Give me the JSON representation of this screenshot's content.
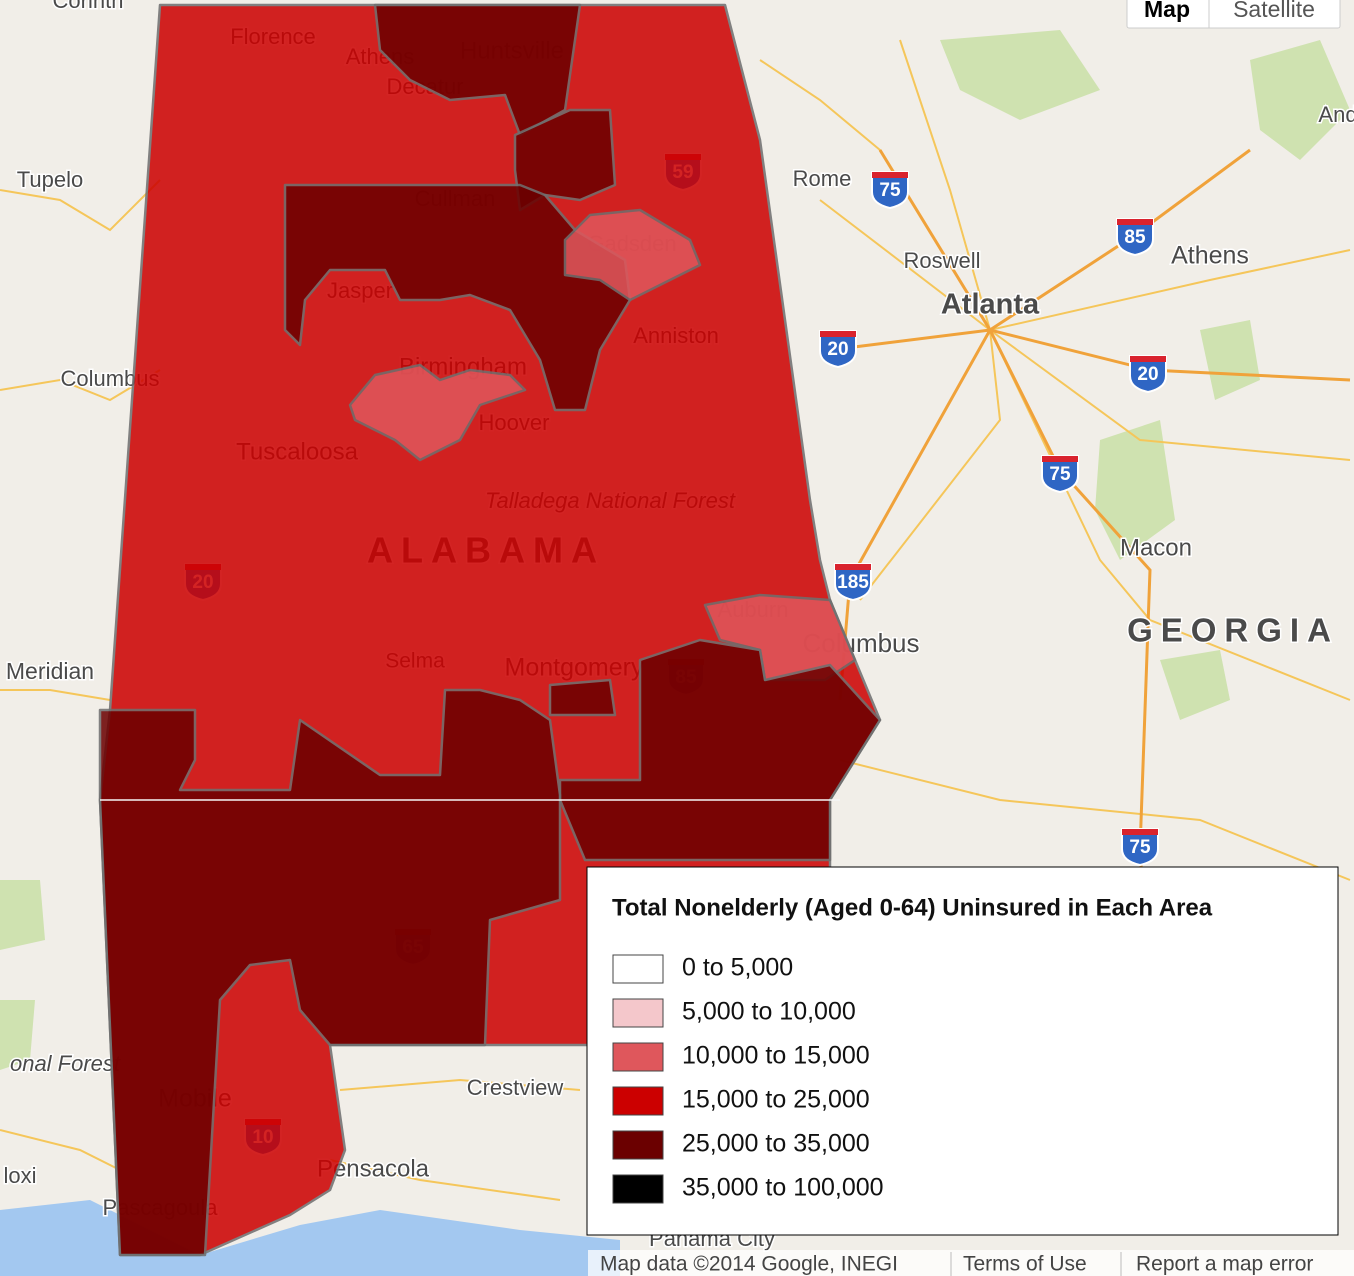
{
  "map_type_control": {
    "buttons": [
      "Map",
      "Satellite"
    ],
    "selected": 0
  },
  "places": [
    "Corinth",
    "Florence",
    "Athens",
    "Huntsville",
    "Decatur",
    "Tupelo",
    "Cullman",
    "Rome",
    "Roswell",
    "Athens",
    "Atlanta",
    "Gadsden",
    "Jasper",
    "Anniston",
    "Columbus",
    "Birmingham",
    "Hoover",
    "Tuscaloosa",
    "Talladega National Forest",
    "ALABAMA",
    "Macon",
    "Auburn",
    "Columbus",
    "GEORGIA",
    "Meridian",
    "Selma",
    "Montgomery",
    "Crestview",
    "Mobile",
    "Pensacola",
    "Pascagoula",
    "Panama City",
    "onal Forest",
    "loxi",
    "And"
  ],
  "highway_shields": [
    "75",
    "85",
    "20",
    "20",
    "75",
    "185",
    "75",
    "59",
    "20",
    "85",
    "65",
    "10"
  ],
  "legend": {
    "title": "Total Nonelderly (Aged 0-64) Uninsured in Each Area",
    "items": [
      {
        "label": "0 to 5,000",
        "color": "#ffffff"
      },
      {
        "label": "5,000 to 10,000",
        "color": "#f4c7cb"
      },
      {
        "label": "10,000 to 15,000",
        "color": "#df575c"
      },
      {
        "label": "15,000 to 25,000",
        "color": "#cc0000"
      },
      {
        "label": "25,000 to 35,000",
        "color": "#6b0000"
      },
      {
        "label": "35,000 to 100,000",
        "color": "#000000"
      }
    ]
  },
  "footer": [
    "Map data ©2014 Google, INEGI",
    "Terms of Use",
    "Report a map error"
  ]
}
